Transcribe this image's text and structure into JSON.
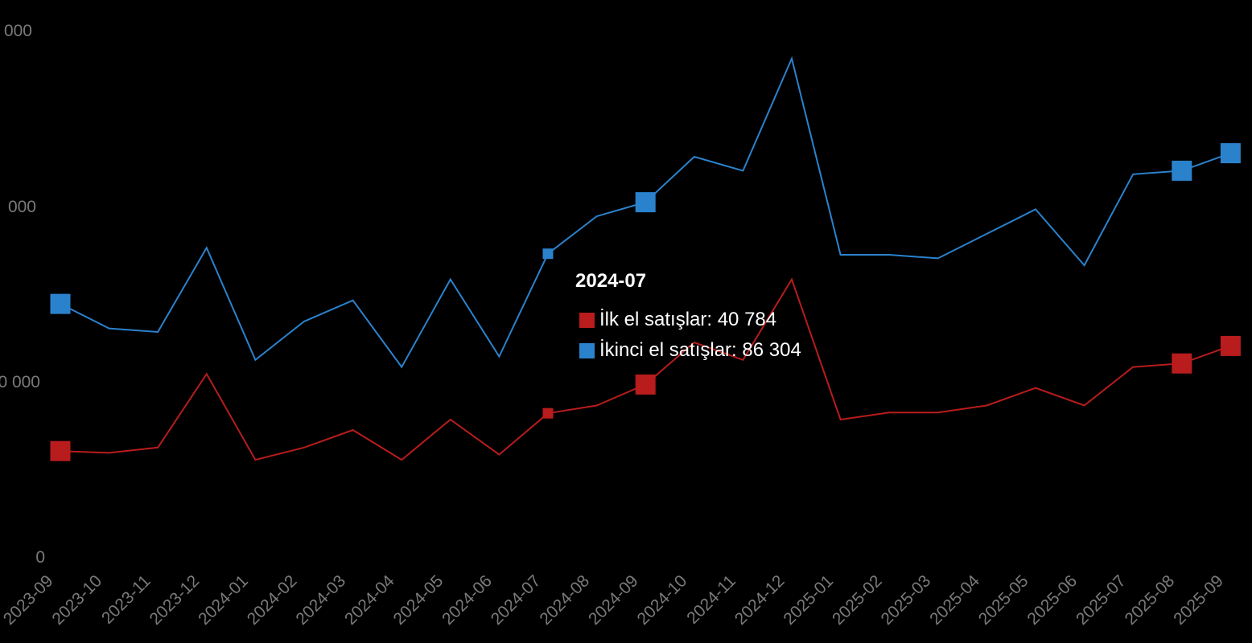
{
  "colors": {
    "primary": "#b81c1c",
    "secondary": "#2b82cc",
    "background": "#000000",
    "tick": "#7a7a7a"
  },
  "chart_data": {
    "type": "line",
    "categories": [
      "2023-09",
      "2023-10",
      "2023-11",
      "2023-12",
      "2024-01",
      "2024-02",
      "2024-03",
      "2024-04",
      "2024-05",
      "2024-06",
      "2024-07",
      "2024-08",
      "2024-09",
      "2024-10",
      "2024-11",
      "2024-12",
      "2025-01",
      "2025-02",
      "2025-03",
      "2025-04",
      "2025-05",
      "2025-06",
      "2025-07",
      "2025-08",
      "2025-09"
    ],
    "series": [
      {
        "name": "İlk el satışlar",
        "color": "#b81c1c",
        "values": [
          30000,
          29500,
          31000,
          52000,
          27500,
          31000,
          36000,
          27500,
          39000,
          29000,
          40784,
          43000,
          49000,
          61000,
          56000,
          79000,
          39000,
          41000,
          41000,
          43000,
          48000,
          43000,
          54000,
          55000,
          60000
        ],
        "markers": [
          0,
          10,
          12,
          23,
          24
        ]
      },
      {
        "name": "İkinci el satışlar",
        "color": "#2b82cc",
        "values": [
          72000,
          65000,
          64000,
          88000,
          56000,
          67000,
          73000,
          54000,
          79000,
          57000,
          86304,
          97000,
          101000,
          114000,
          110000,
          142000,
          86000,
          86000,
          85000,
          92000,
          99000,
          83000,
          109000,
          110000,
          115000
        ],
        "markers": [
          0,
          10,
          12,
          23,
          24
        ]
      }
    ],
    "y_ticks": [
      "0",
      "0 000",
      "000",
      "000"
    ],
    "ylim": [
      0,
      150000
    ],
    "grid": false,
    "tooltip": {
      "title": "2024-07",
      "rows": [
        {
          "label": "İlk el satışlar: 40 784",
          "color": "#b81c1c"
        },
        {
          "label": "İkinci el satışlar: 86 304",
          "color": "#2b82cc"
        }
      ]
    }
  }
}
